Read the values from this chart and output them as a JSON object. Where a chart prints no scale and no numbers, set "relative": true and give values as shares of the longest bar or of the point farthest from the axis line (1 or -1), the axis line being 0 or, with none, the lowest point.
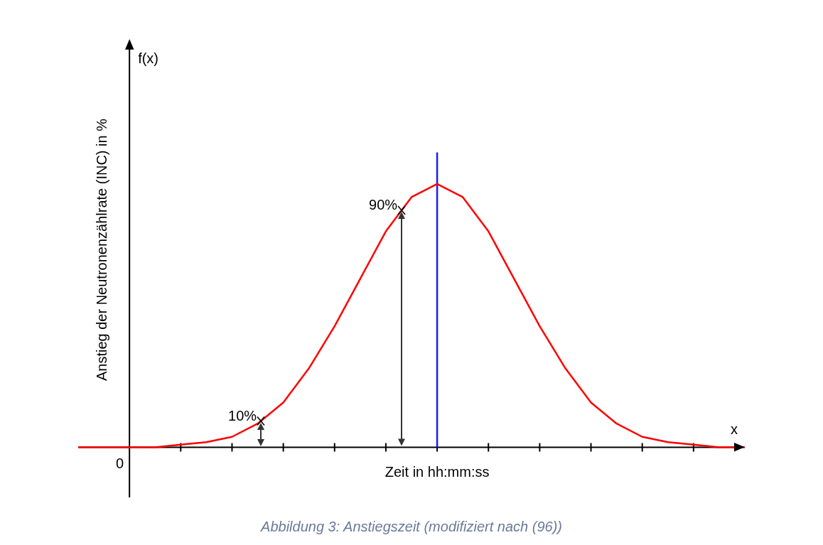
{
  "chart_data": {
    "type": "line",
    "relative": true,
    "xlabel": "Zeit in hh:mm:ss",
    "ylabel": "Anstieg der Neutronenzählrate (INC) in %",
    "categories": [
      null,
      null,
      null,
      null,
      null,
      null,
      null,
      null,
      null,
      null,
      null,
      null,
      null,
      null,
      null,
      null,
      null,
      null,
      null,
      null,
      null,
      null,
      null,
      null,
      null,
      null,
      null
    ],
    "series": [
      {
        "color": "#ff0000",
        "values": [
          0,
          0,
          0,
          0,
          0.01,
          0.02,
          0.04,
          0.09,
          0.17,
          0.3,
          0.46,
          0.64,
          0.82,
          0.95,
          1,
          0.95,
          0.82,
          0.64,
          0.46,
          0.3,
          0.17,
          0.09,
          0.04,
          0.02,
          0.01,
          0,
          0
        ]
      }
    ],
    "ref_lines": [
      {
        "axis": "x",
        "color": "#1a1aff"
      }
    ],
    "annotations": [
      "10%",
      "90%",
      "f(x)",
      "x",
      "0",
      "Abbildung 3: Anstiegszeit (modifiziert nach (96))"
    ],
    "grid": false,
    "legend": false,
    "marker": "none",
    "line_style": "solid"
  }
}
